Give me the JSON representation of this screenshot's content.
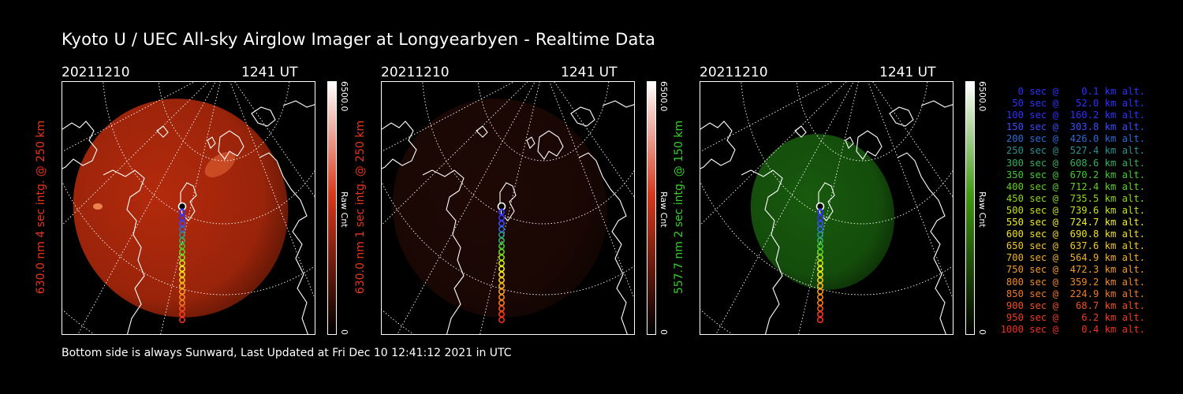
{
  "title": "Kyoto U / UEC All-sky Airglow Imager at Longyearbyen - Realtime Data",
  "footer": "Bottom side is always Sunward, Last Updated at Fri Dec 10 12:41:12 2021 in UTC",
  "panels": [
    {
      "date": "20211210",
      "time": "1241 UT",
      "ylabel": "630.0 nm 4 sec intg. @ 250 km",
      "label_color": "#e8341c",
      "cbar_max": "6500.0",
      "cbar_unit": "Raw Cnt",
      "cbar_min": "0",
      "cbar_color": "#d7371a",
      "image_color": "#b42a0c",
      "image_brightness": 1.0
    },
    {
      "date": "20211210",
      "time": "1241 UT",
      "ylabel": "630.0 nm 1 sec intg. @ 250 km",
      "label_color": "#e8341c",
      "cbar_max": "6500.0",
      "cbar_unit": "Raw Cnt",
      "cbar_min": "0",
      "cbar_color": "#d7371a",
      "image_color": "#4a150a",
      "image_brightness": 0.4
    },
    {
      "date": "20211210",
      "time": "1241 UT",
      "ylabel": "557.7 nm 2 sec intg. @ 150 km",
      "label_color": "#34d02a",
      "cbar_max": "6500.0",
      "cbar_unit": "Raw Cnt",
      "cbar_min": "0",
      "cbar_color": "#3f9a10",
      "image_color": "#1c6a10",
      "image_brightness": 0.85
    }
  ],
  "legend": [
    {
      "text": "   0 sec @    0.1 km alt.",
      "color": "#3030ff"
    },
    {
      "text": "  50 sec @   52.0 km alt.",
      "color": "#3030ff"
    },
    {
      "text": " 100 sec @  160.2 km alt.",
      "color": "#3030ff"
    },
    {
      "text": " 150 sec @  303.8 km alt.",
      "color": "#3a4cff"
    },
    {
      "text": " 200 sec @  426.0 km alt.",
      "color": "#2a6bd8"
    },
    {
      "text": " 250 sec @  527.4 km alt.",
      "color": "#2a9090"
    },
    {
      "text": " 300 sec @  608.6 km alt.",
      "color": "#30b060"
    },
    {
      "text": " 350 sec @  670.2 km alt.",
      "color": "#40c830"
    },
    {
      "text": " 400 sec @  712.4 km alt.",
      "color": "#60d020"
    },
    {
      "text": " 450 sec @  735.5 km alt.",
      "color": "#90d818"
    },
    {
      "text": " 500 sec @  739.6 km alt.",
      "color": "#c8e010"
    },
    {
      "text": " 550 sec @  724.7 km alt.",
      "color": "#f0f020"
    },
    {
      "text": " 600 sec @  690.8 km alt.",
      "color": "#f0e020"
    },
    {
      "text": " 650 sec @  637.6 km alt.",
      "color": "#f0c820"
    },
    {
      "text": " 700 sec @  564.9 km alt.",
      "color": "#f0b020"
    },
    {
      "text": " 750 sec @  472.3 km alt.",
      "color": "#f09c20"
    },
    {
      "text": " 800 sec @  359.2 km alt.",
      "color": "#f08a20"
    },
    {
      "text": " 850 sec @  224.9 km alt.",
      "color": "#f07a20"
    },
    {
      "text": " 900 sec @   68.7 km alt.",
      "color": "#f05020"
    },
    {
      "text": " 950 sec @    6.2 km alt.",
      "color": "#f03a20"
    },
    {
      "text": "1000 sec @    0.4 km alt.",
      "color": "#f03020"
    }
  ]
}
